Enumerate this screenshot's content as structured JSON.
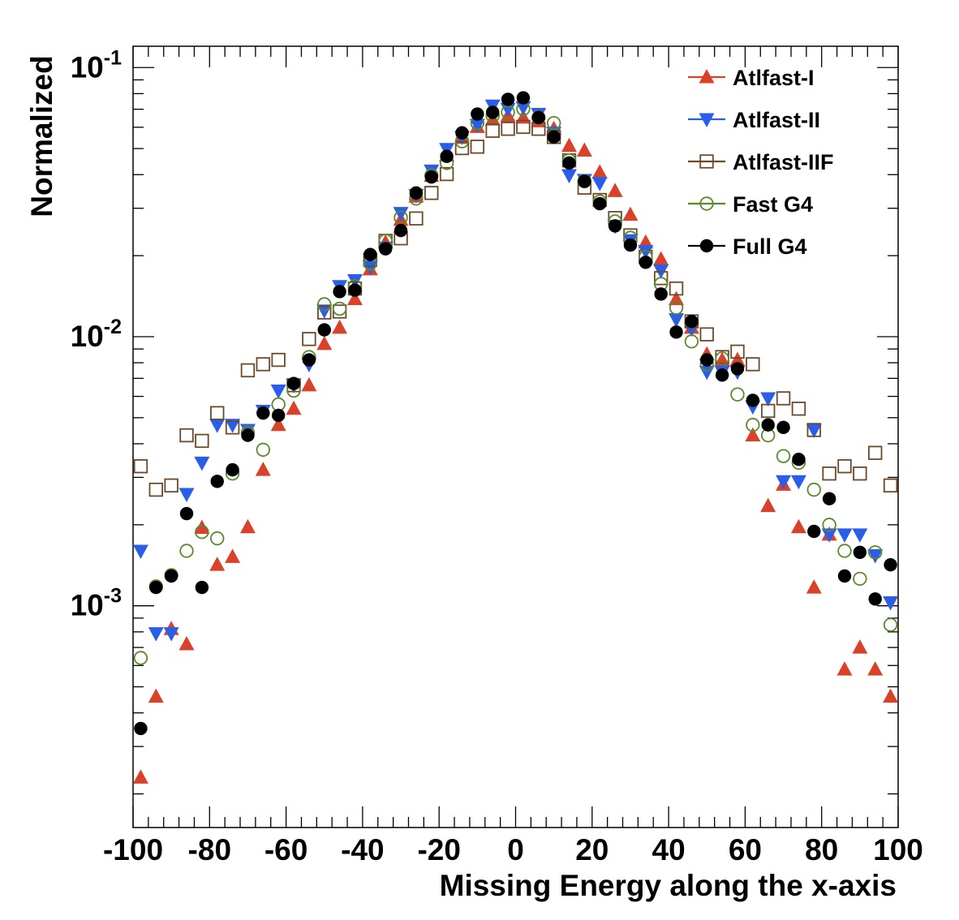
{
  "chart_data": {
    "type": "scatter",
    "title": "",
    "xlabel": "Missing Energy along the x-axis",
    "ylabel": "Normalized",
    "xlim": [
      -100,
      100
    ],
    "ylim": [
      0.00015,
      0.12
    ],
    "yscale": "log",
    "x_ticks": [
      -100,
      -80,
      -60,
      -40,
      -20,
      0,
      20,
      40,
      60,
      80,
      100
    ],
    "x_tick_labels": [
      "-100",
      "-80",
      "-60",
      "-40",
      "-20",
      "0",
      "20",
      "40",
      "60",
      "80",
      "100"
    ],
    "y_ticks": [
      {
        "value": 0.1,
        "base": "10",
        "exp": "-1"
      },
      {
        "value": 0.01,
        "base": "10",
        "exp": "-2"
      },
      {
        "value": 0.001,
        "base": "10",
        "exp": "-3"
      }
    ],
    "legend_position": "top-right",
    "x": [
      -98,
      -94,
      -90,
      -86,
      -82,
      -78,
      -74,
      -70,
      -66,
      -62,
      -58,
      -54,
      -50,
      -46,
      -42,
      -38,
      -34,
      -30,
      -26,
      -22,
      -18,
      -14,
      -10,
      -6,
      -2,
      2,
      6,
      10,
      14,
      18,
      22,
      26,
      30,
      34,
      38,
      42,
      46,
      50,
      54,
      58,
      62,
      66,
      70,
      74,
      78,
      82,
      86,
      90,
      94,
      98
    ],
    "series": [
      {
        "name": "Atlfast-I",
        "marker": "triangle-up",
        "color": "#d9412b",
        "values": [
          0.00023,
          0.00046,
          0.00082,
          0.00072,
          0.00195,
          0.00142,
          0.00152,
          0.00196,
          0.0032,
          0.0047,
          0.0054,
          0.0066,
          0.0094,
          0.0108,
          0.0138,
          0.0178,
          0.0224,
          0.0272,
          0.0332,
          0.0396,
          0.0472,
          0.0548,
          0.0602,
          0.0642,
          0.0662,
          0.0652,
          0.0632,
          0.0592,
          0.0512,
          0.0492,
          0.0408,
          0.0348,
          0.0284,
          0.0224,
          0.0194,
          0.0138,
          0.0108,
          0.0086,
          0.0082,
          0.0082,
          0.0043,
          0.00235,
          0.00282,
          0.00196,
          0.00117,
          0.00184,
          0.00058,
          0.0007,
          0.00058,
          0.00046
        ]
      },
      {
        "name": "Atlfast-II",
        "marker": "triangle-down",
        "color": "#2a5ee8",
        "values": [
          0.0016,
          0.00079,
          0.00079,
          0.0026,
          0.0034,
          0.0047,
          0.0047,
          0.0045,
          0.0053,
          0.0063,
          0.0066,
          0.0079,
          0.0125,
          0.0154,
          0.0162,
          0.0182,
          0.0214,
          0.0288,
          0.0336,
          0.0414,
          0.0498,
          0.0552,
          0.0612,
          0.0722,
          0.0702,
          0.0712,
          0.0672,
          0.0572,
          0.0398,
          0.0382,
          0.0372,
          0.0258,
          0.0228,
          0.0208,
          0.0176,
          0.0116,
          0.0107,
          0.0074,
          0.0074,
          0.0074,
          0.0055,
          0.0059,
          0.0029,
          0.0029,
          0.0045,
          0.00184,
          0.00184,
          0.00184,
          0.00154,
          0.00103
        ]
      },
      {
        "name": "Atlfast-IIF",
        "marker": "square-open",
        "color": "#6b4a2a",
        "values": [
          0.0033,
          0.0027,
          0.0028,
          0.0043,
          0.0041,
          0.0052,
          0.0046,
          0.0075,
          0.0079,
          0.0082,
          0.0066,
          0.0098,
          0.0123,
          0.0124,
          0.0151,
          0.0193,
          0.0227,
          0.0232,
          0.0275,
          0.0342,
          0.0402,
          0.0502,
          0.0508,
          0.0582,
          0.0592,
          0.0602,
          0.0592,
          0.0552,
          0.0452,
          0.0358,
          0.0322,
          0.0276,
          0.0238,
          0.0198,
          0.0165,
          0.0151,
          0.0114,
          0.0102,
          0.0084,
          0.0088,
          0.0079,
          0.0053,
          0.0059,
          0.0054,
          0.0045,
          0.0031,
          0.0033,
          0.0031,
          0.0037,
          0.0028
        ]
      },
      {
        "name": "Fast G4",
        "marker": "circle-open",
        "color": "#5a8a2a",
        "values": [
          0.00064,
          0.00118,
          0.0013,
          0.0016,
          0.00188,
          0.00178,
          0.0031,
          0.0044,
          0.0038,
          0.0056,
          0.0063,
          0.0084,
          0.0132,
          0.0127,
          0.0154,
          0.0187,
          0.0227,
          0.0277,
          0.0326,
          0.0398,
          0.0442,
          0.0532,
          0.0622,
          0.0662,
          0.0682,
          0.0702,
          0.0652,
          0.0622,
          0.0452,
          0.0378,
          0.0318,
          0.0268,
          0.0233,
          0.0198,
          0.0157,
          0.0128,
          0.0096,
          0.0079,
          0.0083,
          0.0061,
          0.0047,
          0.0043,
          0.0036,
          0.0034,
          0.0027,
          0.002,
          0.0016,
          0.00126,
          0.00158,
          0.00085
        ]
      },
      {
        "name": "Full G4",
        "marker": "circle-filled",
        "color": "#000000",
        "values": [
          0.00035,
          0.00117,
          0.00129,
          0.0022,
          0.00117,
          0.0029,
          0.0032,
          0.0043,
          0.0052,
          0.0051,
          0.0067,
          0.0082,
          0.0106,
          0.0147,
          0.0149,
          0.0202,
          0.0212,
          0.0248,
          0.0342,
          0.0392,
          0.0468,
          0.0572,
          0.0672,
          0.0682,
          0.0762,
          0.0772,
          0.0652,
          0.0552,
          0.0442,
          0.0378,
          0.0312,
          0.0258,
          0.0219,
          0.0189,
          0.0144,
          0.0104,
          0.0114,
          0.0082,
          0.0072,
          0.0076,
          0.0058,
          0.0047,
          0.0046,
          0.0035,
          0.00189,
          0.0025,
          0.00129,
          0.00158,
          0.00106,
          0.00142
        ]
      }
    ]
  }
}
